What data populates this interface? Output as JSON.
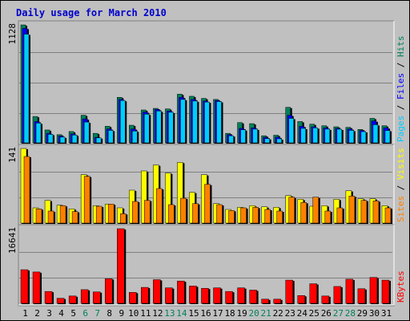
{
  "title": "Daily usage for March 2010",
  "colors": {
    "hits": "#00805c",
    "files": "#0000ff",
    "pages": "#00ccff",
    "visits": "#ffff00",
    "sites": "#ff8000",
    "kbytes": "#ff0000",
    "weekday_label": "#000000",
    "weekend_label": "#00805c"
  },
  "chart_data": [
    {
      "type": "bar",
      "panel": "hits-files-pages",
      "categories": [
        "1",
        "2",
        "3",
        "4",
        "5",
        "6",
        "7",
        "8",
        "9",
        "10",
        "11",
        "12",
        "13",
        "14",
        "15",
        "16",
        "17",
        "18",
        "19",
        "20",
        "21",
        "22",
        "23",
        "24",
        "25",
        "26",
        "27",
        "28",
        "29",
        "30",
        "31"
      ],
      "weekend_days": [
        "6",
        "7",
        "13",
        "14",
        "20",
        "21",
        "27",
        "28"
      ],
      "y_max_label": "1128",
      "ylim": [
        0,
        1128
      ],
      "side_labels": [
        {
          "text": "Pages",
          "color": "#00ccff"
        },
        {
          "text": " / ",
          "color": "#000000"
        },
        {
          "text": "Files",
          "color": "#0000ff"
        },
        {
          "text": " / ",
          "color": "#000000"
        },
        {
          "text": "Hits",
          "color": "#00805c"
        }
      ],
      "series": [
        {
          "name": "Hits",
          "values": [
            1128,
            258,
            130,
            85,
            115,
            270,
            98,
            165,
            440,
            175,
            320,
            335,
            330,
            470,
            450,
            430,
            420,
            98,
            200,
            190,
            75,
            80,
            345,
            210,
            185,
            170,
            160,
            155,
            135,
            240,
            170
          ]
        },
        {
          "name": "Files",
          "values": [
            1095,
            210,
            98,
            72,
            92,
            235,
            60,
            140,
            420,
            140,
            300,
            325,
            310,
            440,
            420,
            405,
            410,
            85,
            145,
            150,
            60,
            62,
            270,
            165,
            160,
            150,
            145,
            140,
            125,
            215,
            150
          ]
        },
        {
          "name": "Pages",
          "values": [
            1040,
            195,
            88,
            62,
            82,
            205,
            55,
            126,
            410,
            120,
            280,
            310,
            298,
            420,
            405,
            395,
            400,
            75,
            132,
            138,
            48,
            46,
            240,
            145,
            150,
            138,
            137,
            126,
            114,
            180,
            125
          ]
        }
      ]
    },
    {
      "type": "bar",
      "panel": "visits-sites",
      "categories": [
        "1",
        "2",
        "3",
        "4",
        "5",
        "6",
        "7",
        "8",
        "9",
        "10",
        "11",
        "12",
        "13",
        "14",
        "15",
        "16",
        "17",
        "18",
        "19",
        "20",
        "21",
        "22",
        "23",
        "24",
        "25",
        "26",
        "27",
        "28",
        "29",
        "30",
        "31"
      ],
      "y_max_label": "141",
      "ylim": [
        0,
        141
      ],
      "side_labels": [
        {
          "text": "Sites",
          "color": "#ff8000"
        },
        {
          "text": " / ",
          "color": "#000000"
        },
        {
          "text": "Visits",
          "color": "#ffff00"
        }
      ],
      "series": [
        {
          "name": "Visits",
          "values": [
            141,
            30,
            44,
            35,
            28,
            92,
            34,
            37,
            30,
            63,
            99,
            110,
            95,
            115,
            59,
            92,
            38,
            27,
            31,
            34,
            32,
            31,
            53,
            46,
            33,
            34,
            46,
            62,
            47,
            47,
            34
          ]
        },
        {
          "name": "Sites",
          "values": [
            126,
            28,
            24,
            34,
            23,
            89,
            33,
            37,
            19,
            42,
            44,
            66,
            36,
            48,
            38,
            74,
            36,
            25,
            30,
            31,
            27,
            24,
            50,
            40,
            50,
            24,
            30,
            52,
            44,
            43,
            30
          ]
        }
      ]
    },
    {
      "type": "bar",
      "panel": "kbytes",
      "categories": [
        "1",
        "2",
        "3",
        "4",
        "5",
        "6",
        "7",
        "8",
        "9",
        "10",
        "11",
        "12",
        "13",
        "14",
        "15",
        "16",
        "17",
        "18",
        "19",
        "20",
        "21",
        "22",
        "23",
        "24",
        "25",
        "26",
        "27",
        "28",
        "29",
        "30",
        "31"
      ],
      "y_max_label": "16641",
      "ylim": [
        0,
        16641
      ],
      "side_labels": [
        {
          "text": "KBytes",
          "color": "#ff0000"
        }
      ],
      "series": [
        {
          "name": "KBytes",
          "values": [
            7600,
            7100,
            2800,
            1300,
            1800,
            3200,
            2700,
            5600,
            16641,
            2600,
            3700,
            5400,
            3600,
            5100,
            4000,
            3500,
            3600,
            2800,
            3600,
            3100,
            1100,
            1100,
            5300,
            1900,
            4500,
            1800,
            3900,
            5500,
            3400,
            5900,
            5300
          ]
        }
      ]
    }
  ]
}
